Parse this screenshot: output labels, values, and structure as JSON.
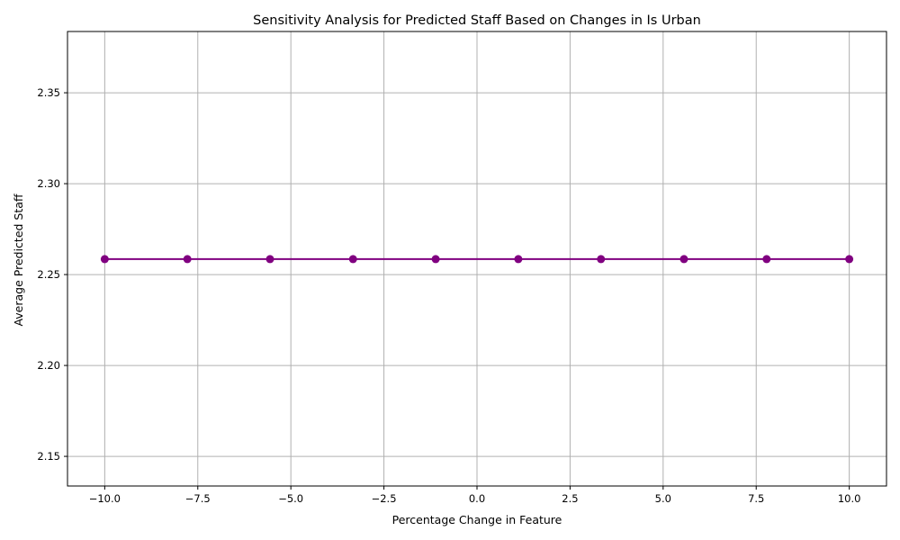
{
  "chart_data": {
    "type": "line",
    "title": "Sensitivity Analysis for Predicted Staff Based on Changes in Is Urban",
    "xlabel": "Percentage Change in Feature",
    "ylabel": "Average Predicted Staff",
    "xlim": [
      -11.0,
      11.0
    ],
    "ylim": [
      2.1337,
      2.3837
    ],
    "grid": true,
    "x_ticks": [
      -10.0,
      -7.5,
      -5.0,
      -2.5,
      0.0,
      2.5,
      5.0,
      7.5,
      10.0
    ],
    "x_tick_labels": [
      "−10.0",
      "−7.5",
      "−5.0",
      "−2.5",
      "0.0",
      "2.5",
      "5.0",
      "7.5",
      "10.0"
    ],
    "y_ticks": [
      2.15,
      2.2,
      2.25,
      2.3,
      2.35
    ],
    "y_tick_labels": [
      "2.15",
      "2.20",
      "2.25",
      "2.30",
      "2.35"
    ],
    "series": [
      {
        "color": "#800080",
        "marker": "circle",
        "x": [
          -10.0,
          -7.78,
          -5.56,
          -3.33,
          -1.11,
          1.11,
          3.33,
          5.56,
          7.78,
          10.0
        ],
        "y": [
          2.2585,
          2.2585,
          2.2585,
          2.2585,
          2.2585,
          2.2585,
          2.2585,
          2.2585,
          2.2585,
          2.2585
        ]
      }
    ]
  }
}
